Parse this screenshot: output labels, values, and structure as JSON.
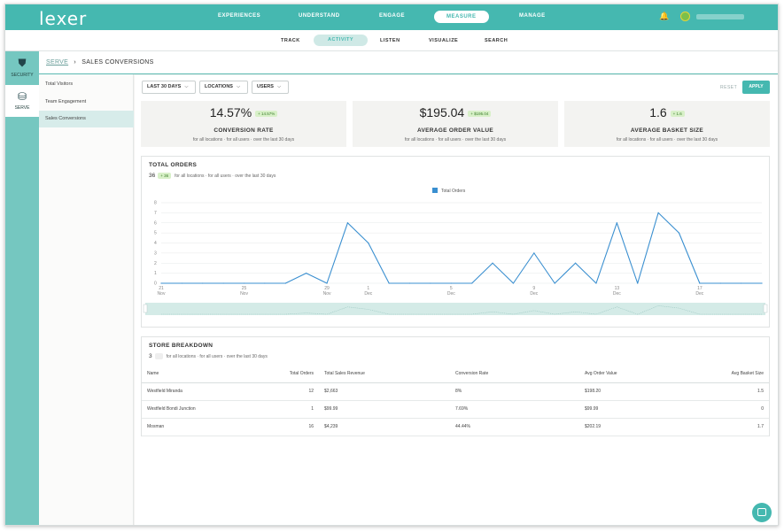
{
  "app": {
    "logo": "lexer",
    "accent": "#45b8b0"
  },
  "topnav": {
    "items": [
      {
        "label": "EXPERIENCES",
        "active": false
      },
      {
        "label": "UNDERSTAND",
        "active": false
      },
      {
        "label": "ENGAGE",
        "active": false
      },
      {
        "label": "MEASURE",
        "active": true
      },
      {
        "label": "MANAGE",
        "active": false
      }
    ],
    "bell_icon": "🔔"
  },
  "subnav": {
    "items": [
      {
        "label": "TRACK"
      },
      {
        "label": "ACTIVITY",
        "active": true
      },
      {
        "label": "LISTEN"
      },
      {
        "label": "VISUALIZE"
      },
      {
        "label": "SEARCH"
      }
    ]
  },
  "leftbar": {
    "items": [
      {
        "label": "SECURITY",
        "icon": "shield-icon",
        "glyph": "⛊"
      },
      {
        "label": "SERVE",
        "icon": "store-icon",
        "glyph": "⛁",
        "active": true
      }
    ]
  },
  "subsidebar": {
    "items": [
      {
        "label": "Total Visitors"
      },
      {
        "label": "Team Engagement"
      },
      {
        "label": "Sales Conversions",
        "active": true
      }
    ]
  },
  "breadcrumb": {
    "parent": "SERVE",
    "separator": "›",
    "current": "SALES CONVERSIONS"
  },
  "filters": {
    "date": "LAST 30 DAYS",
    "locations": "LOCATIONS",
    "users": "USERS",
    "chevron": "⌵",
    "reset": "RESET",
    "apply": "APPLY"
  },
  "kpis": [
    {
      "value": "14.57%",
      "badge": "+ 14.57%",
      "title": "CONVERSION RATE",
      "sub": "for all locations · for all users · over the last 30 days"
    },
    {
      "value": "$195.04",
      "badge": "+ $195.04",
      "title": "AVERAGE ORDER VALUE",
      "sub": "for all locations · for all users · over the last 30 days"
    },
    {
      "value": "1.6",
      "badge": "+ 1.6",
      "title": "AVERAGE BASKET SIZE",
      "sub": "for all locations · for all users · over the last 30 days"
    }
  ],
  "total_orders": {
    "title": "TOTAL ORDERS",
    "count": "36",
    "badge": "+ 36",
    "sub": "for all locations · for all users · over the last 30 days"
  },
  "chart_data": {
    "type": "line",
    "title": "TOTAL ORDERS",
    "legend": [
      "Total Orders"
    ],
    "series_color": "#3a8fd0",
    "ylim": [
      0,
      8
    ],
    "yticks": [
      "0",
      "1",
      "2",
      "3",
      "4",
      "5",
      "6",
      "7",
      "8"
    ],
    "xtick_labels": [
      {
        "day": "21",
        "month": "Nov",
        "index": 0
      },
      {
        "day": "25",
        "month": "Nov",
        "index": 4
      },
      {
        "day": "29",
        "month": "Nov",
        "index": 8
      },
      {
        "day": "1",
        "month": "Dec",
        "index": 10
      },
      {
        "day": "5",
        "month": "Dec",
        "index": 14
      },
      {
        "day": "9",
        "month": "Dec",
        "index": 18
      },
      {
        "day": "13",
        "month": "Dec",
        "index": 22
      },
      {
        "day": "17",
        "month": "Dec",
        "index": 26
      }
    ],
    "x": [
      0,
      1,
      2,
      3,
      4,
      5,
      6,
      7,
      8,
      9,
      10,
      11,
      12,
      13,
      14,
      15,
      16,
      17,
      18,
      19,
      20,
      21,
      22,
      23,
      24,
      25,
      26,
      27,
      28,
      29
    ],
    "values": [
      0,
      0,
      0,
      0,
      0,
      0,
      0,
      1,
      0,
      6,
      4,
      0,
      0,
      0,
      0,
      0,
      2,
      0,
      3,
      0,
      2,
      0,
      6,
      0,
      7,
      5,
      0,
      0,
      0,
      0
    ]
  },
  "store_breakdown": {
    "title": "STORE BREAKDOWN",
    "count": "3",
    "sub": "for all locations · for all users · over the last 30 days",
    "columns": [
      "Name",
      "Total Orders",
      "Total Sales Revenue",
      "Conversion Rate",
      "Avg Order Value",
      "Avg Basket Size"
    ],
    "rows": [
      [
        "Westfield Miranda",
        "12",
        "$2,663",
        "8%",
        "$198.20",
        "1.5"
      ],
      [
        "Westfield Bondi Junction",
        "1",
        "$99.99",
        "7.69%",
        "$99.99",
        "0"
      ],
      [
        "Mosman",
        "16",
        "$4,239",
        "44.44%",
        "$202.19",
        "1.7"
      ]
    ]
  }
}
